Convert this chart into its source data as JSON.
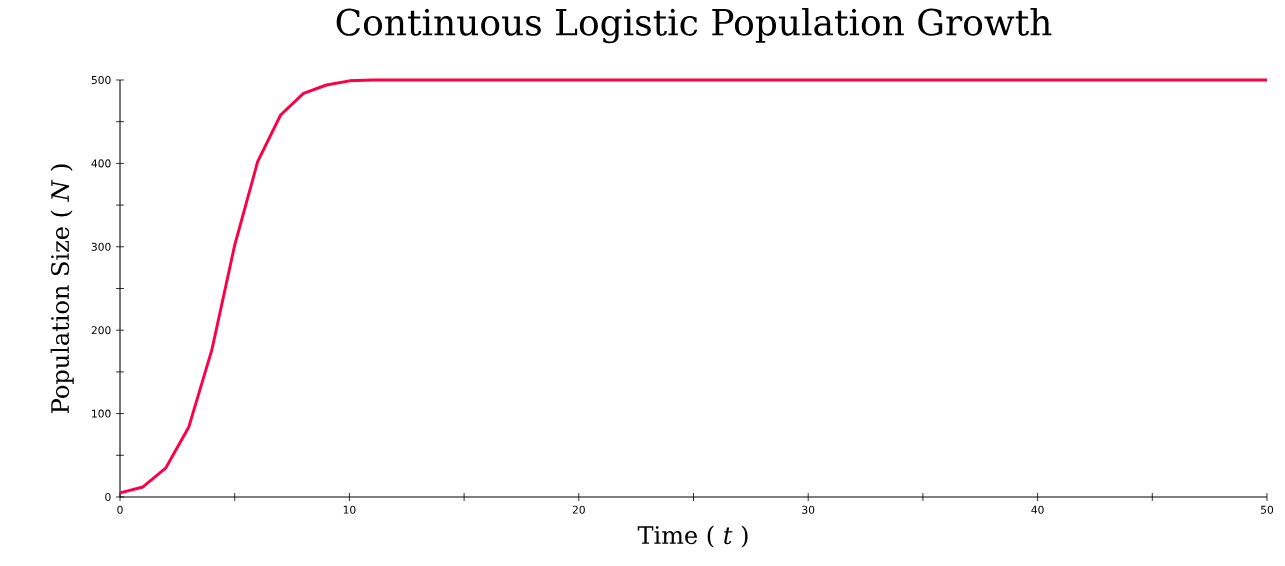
{
  "chart_data": {
    "type": "line",
    "title": "Continuous Logistic Population Growth",
    "xlabel": "Time ( *t* )",
    "ylabel": "Population Size ( *N* )",
    "x": [
      0,
      1,
      2,
      3,
      4,
      5,
      6,
      7,
      8,
      9,
      10,
      11,
      12,
      15,
      20,
      30,
      40,
      50
    ],
    "series": [
      {
        "color": "#ff0044",
        "values": [
          5,
          12,
          35,
          84,
          176,
          302,
          402,
          458,
          484,
          494,
          499,
          500,
          500,
          500,
          500,
          500,
          500,
          500
        ]
      }
    ],
    "xlim": [
      0,
      50
    ],
    "ylim": [
      0,
      500
    ],
    "xticks": [
      0,
      {
        "value": 5,
        "label": null
      },
      10,
      {
        "value": 15,
        "label": null
      },
      20,
      {
        "value": 25,
        "label": null
      },
      30,
      {
        "value": 35,
        "label": null
      },
      40,
      {
        "value": 45,
        "label": null
      },
      50
    ],
    "yticks": [
      0,
      {
        "value": 50,
        "label": null
      },
      100,
      {
        "value": 150,
        "label": null
      },
      200,
      {
        "value": 250,
        "label": null
      },
      300,
      {
        "value": 350,
        "label": null
      },
      400,
      {
        "value": 450,
        "label": null
      },
      500
    ],
    "grid": false,
    "marker": "none",
    "line_style": "solid"
  }
}
